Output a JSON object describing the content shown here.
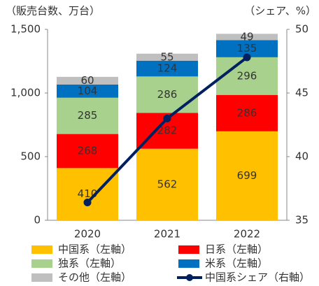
{
  "chart_data": {
    "type": "bar",
    "stacked": true,
    "y_axis_label": "（販売台数、万台）",
    "y2_axis_label": "（シェア、%）",
    "categories": [
      "2020",
      "2021",
      "2022"
    ],
    "series": [
      {
        "name": "中国系（左軸）",
        "color": "#FFC000",
        "values": [
          410,
          562,
          699
        ]
      },
      {
        "name": "日系（左軸）",
        "color": "#FF0000",
        "values": [
          268,
          282,
          286
        ]
      },
      {
        "name": "独系（左軸）",
        "color": "#A9D18E",
        "values": [
          285,
          286,
          296
        ]
      },
      {
        "name": "米系（左軸）",
        "color": "#0070C0",
        "values": [
          104,
          124,
          135
        ]
      },
      {
        "name": "その他（左軸）",
        "color": "#BFBFBF",
        "values": [
          60,
          55,
          49
        ]
      },
      {
        "name": "中国系シェア（右軸）",
        "color": "#002060",
        "type": "line",
        "axis": "y2",
        "values": [
          36.4,
          43.0,
          47.8
        ]
      }
    ],
    "ylim": [
      0,
      1500
    ],
    "yticks": [
      0,
      500,
      {
        "value": 1000,
        "label": "1,000"
      },
      {
        "value": 1500,
        "label": "1,500"
      }
    ],
    "y2lim": [
      35,
      50
    ],
    "y2ticks": [
      35,
      40,
      45,
      50
    ]
  }
}
